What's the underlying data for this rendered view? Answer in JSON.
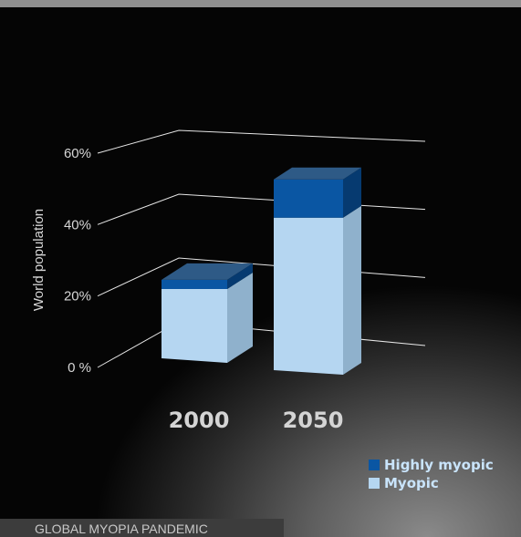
{
  "caption": "GLOBAL MYOPIA PANDEMIC",
  "colors": {
    "myopic_front": "#b5d6f1",
    "myopic_side": "#8fb1cc",
    "high_front": "#0a56a3",
    "high_side": "#063a70",
    "high_top": "#2e5a86",
    "legend_text": "#c9e4fb"
  },
  "chart_data": {
    "type": "bar",
    "stacked": true,
    "categories": [
      "2000",
      "2050"
    ],
    "series": [
      {
        "name": "Myopic",
        "values": [
          20,
          41
        ]
      },
      {
        "name": "Highly myopic",
        "values": [
          2.5,
          10
        ]
      }
    ],
    "ylabel": "World population",
    "yticks": [
      "0 %",
      "20%",
      "40%",
      "60%"
    ],
    "ylim": [
      0,
      60
    ],
    "grid": true,
    "legend_position": "bottom-right"
  }
}
